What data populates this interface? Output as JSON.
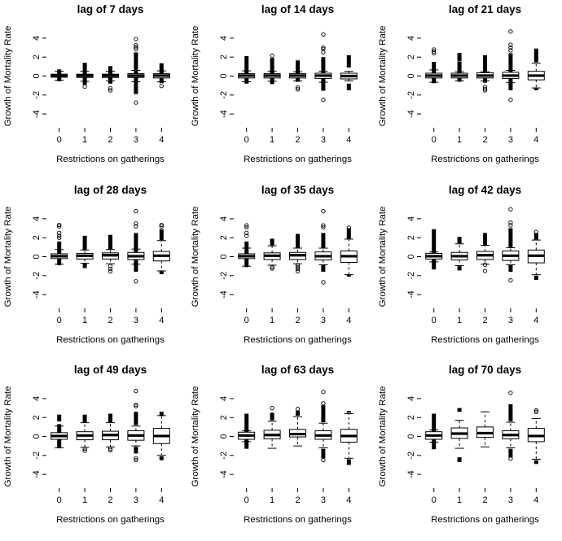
{
  "colors": {
    "background": "#ffffff",
    "ink": "#000000"
  },
  "chart_data": [
    {
      "type": "boxplot",
      "title": "lag of 7 days",
      "xlabel": "Restrictions on gatherings",
      "ylabel": "Growth of Mortality Rate",
      "categories": [
        "0",
        "1",
        "2",
        "3",
        "4"
      ],
      "yticks": [
        -4,
        -2,
        0,
        2,
        4
      ],
      "ylim": [
        -5.45,
        5.45
      ],
      "boxes": [
        {
          "median": 0.05,
          "q1": -0.12,
          "q3": 0.2,
          "whisker_low": -0.45,
          "whisker_high": 0.5,
          "outlier_stacks": [
            [
              -0.55,
              0.7
            ]
          ],
          "outliers": []
        },
        {
          "median": 0.05,
          "q1": -0.15,
          "q3": 0.2,
          "whisker_low": -0.55,
          "whisker_high": 0.5,
          "outlier_stacks": [
            [
              -0.9,
              1.4
            ]
          ],
          "outliers": [
            -1.1
          ]
        },
        {
          "median": 0.05,
          "q1": -0.15,
          "q3": 0.2,
          "whisker_low": -0.5,
          "whisker_high": 0.5,
          "outlier_stacks": [
            [
              -0.8,
              1.05
            ]
          ],
          "outliers": [
            -1.3,
            -1.5
          ]
        },
        {
          "median": 0.05,
          "q1": -0.15,
          "q3": 0.25,
          "whisker_low": -0.6,
          "whisker_high": 0.6,
          "outlier_stacks": [
            [
              -1.9,
              2.5
            ]
          ],
          "outliers": [
            2.85,
            3.05,
            3.25,
            3.9,
            -2.8
          ]
        },
        {
          "median": 0.05,
          "q1": -0.2,
          "q3": 0.25,
          "whisker_low": -0.6,
          "whisker_high": 0.55,
          "outlier_stacks": [
            [
              -0.75,
              1.35
            ]
          ],
          "outliers": [
            -1.05
          ]
        }
      ]
    },
    {
      "type": "boxplot",
      "title": "lag of 14 days",
      "xlabel": "Restrictions on gatherings",
      "ylabel": "Growth of Mortality Rate",
      "categories": [
        "0",
        "1",
        "2",
        "3",
        "4"
      ],
      "yticks": [
        -4,
        -2,
        0,
        2,
        4
      ],
      "ylim": [
        -5.45,
        5.45
      ],
      "boxes": [
        {
          "median": 0.05,
          "q1": -0.2,
          "q3": 0.25,
          "whisker_low": -0.6,
          "whisker_high": 0.55,
          "outlier_stacks": [
            [
              -0.8,
              2.1
            ]
          ],
          "outliers": []
        },
        {
          "median": 0.05,
          "q1": -0.2,
          "q3": 0.25,
          "whisker_low": -0.55,
          "whisker_high": 0.5,
          "outlier_stacks": [
            [
              -0.85,
              1.9
            ]
          ],
          "outliers": [
            2.15
          ]
        },
        {
          "median": 0.05,
          "q1": -0.2,
          "q3": 0.25,
          "whisker_low": -0.5,
          "whisker_high": 0.45,
          "outlier_stacks": [
            [
              -0.6,
              1.65
            ]
          ],
          "outliers": [
            -1.2,
            -1.4
          ]
        },
        {
          "median": 0.05,
          "q1": -0.25,
          "q3": 0.3,
          "whisker_low": -0.65,
          "whisker_high": 0.5,
          "outlier_stacks": [
            [
              -1.55,
              2.0
            ]
          ],
          "outliers": [
            2.5,
            2.85,
            3.0,
            4.4,
            -2.5
          ]
        },
        {
          "median": 0.0,
          "q1": -0.3,
          "q3": 0.3,
          "whisker_low": -0.5,
          "whisker_high": 0.5,
          "outlier_stacks": [
            [
              0.9,
              2.2
            ],
            [
              -0.8,
              -1.5
            ]
          ],
          "outliers": []
        }
      ]
    },
    {
      "type": "boxplot",
      "title": "lag of 21 days",
      "xlabel": "Restrictions on gatherings",
      "ylabel": "Growth of Mortality Rate",
      "categories": [
        "0",
        "1",
        "2",
        "3",
        "4"
      ],
      "yticks": [
        -4,
        -2,
        0,
        2,
        4
      ],
      "ylim": [
        -5.45,
        5.45
      ],
      "boxes": [
        {
          "median": 0.05,
          "q1": -0.2,
          "q3": 0.3,
          "whisker_low": -0.65,
          "whisker_high": 0.65,
          "outlier_stacks": [
            [
              -0.75,
              1.5
            ]
          ],
          "outliers": [
            2.4,
            2.6,
            2.8
          ]
        },
        {
          "median": 0.05,
          "q1": -0.2,
          "q3": 0.3,
          "whisker_low": -0.5,
          "whisker_high": 0.45,
          "outlier_stacks": [
            [
              -0.6,
              1.55
            ],
            [
              1.6,
              2.45
            ]
          ],
          "outliers": []
        },
        {
          "median": 0.05,
          "q1": -0.2,
          "q3": 0.35,
          "whisker_low": -0.5,
          "whisker_high": 0.45,
          "outlier_stacks": [
            [
              -0.7,
              2.2
            ]
          ],
          "outliers": [
            -1.15,
            -1.35,
            -1.5
          ]
        },
        {
          "median": 0.05,
          "q1": -0.25,
          "q3": 0.4,
          "whisker_low": -0.7,
          "whisker_high": 0.6,
          "outlier_stacks": [
            [
              -1.5,
              2.4
            ]
          ],
          "outliers": [
            2.7,
            3.0,
            3.3,
            4.7,
            -2.5
          ]
        },
        {
          "median": 0.05,
          "q1": -0.4,
          "q3": 0.5,
          "whisker_low": -1.25,
          "whisker_high": 1.35,
          "outlier_stacks": [
            [
              1.45,
              2.9
            ],
            [
              -1.3,
              -1.5
            ]
          ],
          "outliers": []
        }
      ]
    },
    {
      "type": "boxplot",
      "title": "lag of 28 days",
      "xlabel": "Restrictions on gatherings",
      "ylabel": "Growth of Mortality Rate",
      "categories": [
        "0",
        "1",
        "2",
        "3",
        "4"
      ],
      "yticks": [
        -4,
        -2,
        0,
        2,
        4
      ],
      "ylim": [
        -5.45,
        5.45
      ],
      "boxes": [
        {
          "median": 0.05,
          "q1": -0.2,
          "q3": 0.3,
          "whisker_low": -0.8,
          "whisker_high": 0.75,
          "outlier_stacks": [
            [
              -0.9,
              1.6
            ]
          ],
          "outliers": [
            2.0,
            2.2,
            2.5,
            3.2,
            3.35
          ]
        },
        {
          "median": 0.1,
          "q1": -0.25,
          "q3": 0.35,
          "whisker_low": -0.7,
          "whisker_high": 0.7,
          "outlier_stacks": [
            [
              0.7,
              2.2
            ],
            [
              -0.7,
              -1.2
            ]
          ],
          "outliers": []
        },
        {
          "median": 0.15,
          "q1": -0.25,
          "q3": 0.4,
          "whisker_low": -0.75,
          "whisker_high": 0.75,
          "outlier_stacks": [
            [
              0.75,
              2.3
            ]
          ],
          "outliers": [
            -1.0,
            -1.3,
            -1.55
          ]
        },
        {
          "median": 0.05,
          "q1": -0.3,
          "q3": 0.45,
          "whisker_low": -0.8,
          "whisker_high": 0.8,
          "outlier_stacks": [
            [
              -1.6,
              2.5
            ]
          ],
          "outliers": [
            3.2,
            3.5,
            4.8,
            -2.6
          ]
        },
        {
          "median": 0.1,
          "q1": -0.45,
          "q3": 0.55,
          "whisker_low": -1.5,
          "whisker_high": 1.7,
          "outlier_stacks": [
            [
              1.75,
              2.9
            ],
            [
              -1.55,
              -1.85
            ]
          ],
          "outliers": [
            3.2,
            3.35
          ]
        }
      ]
    },
    {
      "type": "boxplot",
      "title": "lag of 35 days",
      "xlabel": "Restrictions on gatherings",
      "ylabel": "Growth of Mortality Rate",
      "categories": [
        "0",
        "1",
        "2",
        "3",
        "4"
      ],
      "yticks": [
        -4,
        -2,
        0,
        2,
        4
      ],
      "ylim": [
        -5.45,
        5.45
      ],
      "boxes": [
        {
          "median": 0.05,
          "q1": -0.2,
          "q3": 0.3,
          "whisker_low": -1.0,
          "whisker_high": 0.9,
          "outlier_stacks": [
            [
              -1.1,
              1.6
            ]
          ],
          "outliers": [
            2.2,
            2.5,
            3.1,
            3.3
          ]
        },
        {
          "median": 0.1,
          "q1": -0.3,
          "q3": 0.4,
          "whisker_low": -0.9,
          "whisker_high": 1.15,
          "outlier_stacks": [
            [
              1.2,
              1.9
            ]
          ],
          "outliers": [
            -1.1,
            -1.25
          ]
        },
        {
          "median": 0.15,
          "q1": -0.3,
          "q3": 0.45,
          "whisker_low": -0.75,
          "whisker_high": 0.9,
          "outlier_stacks": [
            [
              0.95,
              2.4
            ]
          ],
          "outliers": [
            -0.9,
            -1.1,
            -1.3,
            -1.55
          ]
        },
        {
          "median": 0.05,
          "q1": -0.35,
          "q3": 0.5,
          "whisker_low": -0.85,
          "whisker_high": 0.9,
          "outlier_stacks": [
            [
              0.95,
              2.5
            ],
            [
              -0.9,
              -1.6
            ]
          ],
          "outliers": [
            3.1,
            3.3,
            4.8,
            -2.7
          ]
        },
        {
          "median": 0.05,
          "q1": -0.6,
          "q3": 0.6,
          "whisker_low": -1.9,
          "whisker_high": 1.85,
          "outlier_stacks": [
            [
              1.9,
              3.0
            ],
            [
              -1.9,
              -2.1
            ]
          ],
          "outliers": [
            3.05
          ]
        }
      ]
    },
    {
      "type": "boxplot",
      "title": "lag of 42 days",
      "xlabel": "Restrictions on gatherings",
      "ylabel": "Growth of Mortality Rate",
      "categories": [
        "0",
        "1",
        "2",
        "3",
        "4"
      ],
      "yticks": [
        -4,
        -2,
        0,
        2,
        4
      ],
      "ylim": [
        -5.45,
        5.45
      ],
      "boxes": [
        {
          "median": 0.05,
          "q1": -0.25,
          "q3": 0.35,
          "whisker_low": -0.55,
          "whisker_high": 0.5,
          "outlier_stacks": [
            [
              -1.35,
              2.9
            ]
          ],
          "outliers": []
        },
        {
          "median": 0.05,
          "q1": -0.35,
          "q3": 0.45,
          "whisker_low": -0.95,
          "whisker_high": 1.35,
          "outlier_stacks": [
            [
              1.4,
              2.1
            ],
            [
              -1.0,
              -1.45
            ]
          ],
          "outliers": []
        },
        {
          "median": 0.15,
          "q1": -0.3,
          "q3": 0.55,
          "whisker_low": -0.8,
          "whisker_high": 1.2,
          "outlier_stacks": [
            [
              1.25,
              2.5
            ]
          ],
          "outliers": [
            -0.85,
            -1.5
          ]
        },
        {
          "median": 0.1,
          "q1": -0.4,
          "q3": 0.6,
          "whisker_low": -0.85,
          "whisker_high": 0.95,
          "outlier_stacks": [
            [
              1.0,
              3.0
            ],
            [
              -0.9,
              -1.6
            ]
          ],
          "outliers": [
            3.3,
            3.6,
            5.0,
            -2.5
          ]
        },
        {
          "median": 0.1,
          "q1": -0.65,
          "q3": 0.7,
          "whisker_low": -1.9,
          "whisker_high": 1.75,
          "outlier_stacks": [
            [
              1.8,
              2.5
            ],
            [
              -2.0,
              -2.45
            ]
          ],
          "outliers": [
            2.6
          ]
        }
      ]
    },
    {
      "type": "boxplot",
      "title": "lag of 49 days",
      "xlabel": "Restrictions on gatherings",
      "ylabel": "Growth of Mortality Rate",
      "categories": [
        "0",
        "1",
        "2",
        "3",
        "4"
      ],
      "yticks": [
        -4,
        -2,
        0,
        2,
        4
      ],
      "ylim": [
        -5.45,
        5.45
      ],
      "boxes": [
        {
          "median": 0.05,
          "q1": -0.3,
          "q3": 0.4,
          "whisker_low": -1.2,
          "whisker_high": 1.1,
          "outlier_stacks": [
            [
              -1.25,
              1.3
            ],
            [
              1.6,
              2.3
            ]
          ],
          "outliers": []
        },
        {
          "median": 0.1,
          "q1": -0.35,
          "q3": 0.5,
          "whisker_low": -1.15,
          "whisker_high": 1.45,
          "outlier_stacks": [
            [
              1.5,
              2.3
            ]
          ],
          "outliers": [
            -1.3,
            -1.5
          ]
        },
        {
          "median": 0.15,
          "q1": -0.35,
          "q3": 0.55,
          "whisker_low": -1.1,
          "whisker_high": 1.45,
          "outlier_stacks": [
            [
              1.5,
              2.4
            ]
          ],
          "outliers": [
            -1.3,
            -1.45
          ]
        },
        {
          "median": 0.1,
          "q1": -0.4,
          "q3": 0.6,
          "whisker_low": -1.0,
          "whisker_high": 1.1,
          "outlier_stacks": [
            [
              1.2,
              2.6
            ],
            [
              -1.1,
              -1.8
            ]
          ],
          "outliers": [
            3.2,
            3.35,
            4.8,
            -2.3,
            -2.5
          ]
        },
        {
          "median": 0.05,
          "q1": -0.75,
          "q3": 0.85,
          "whisker_low": -2.0,
          "whisker_high": 2.2,
          "outlier_stacks": [
            [
              2.2,
              2.6
            ],
            [
              -2.1,
              -2.5
            ]
          ],
          "outliers": []
        }
      ]
    },
    {
      "type": "boxplot",
      "title": "lag of 63 days",
      "xlabel": "Restrictions on gatherings",
      "ylabel": "Growth of Mortality Rate",
      "categories": [
        "0",
        "1",
        "2",
        "3",
        "4"
      ],
      "yticks": [
        -4,
        -2,
        0,
        2,
        4
      ],
      "ylim": [
        -5.45,
        5.45
      ],
      "boxes": [
        {
          "median": 0.1,
          "q1": -0.3,
          "q3": 0.45,
          "whisker_low": -0.55,
          "whisker_high": 0.6,
          "outlier_stacks": [
            [
              -1.3,
              2.4
            ]
          ],
          "outliers": []
        },
        {
          "median": 0.15,
          "q1": -0.25,
          "q3": 0.65,
          "whisker_low": -1.25,
          "whisker_high": 1.6,
          "outlier_stacks": [
            [
              1.7,
              2.5
            ]
          ],
          "outliers": [
            3.0
          ]
        },
        {
          "median": 0.25,
          "q1": -0.05,
          "q3": 0.75,
          "whisker_low": -1.0,
          "whisker_high": 2.1,
          "outlier_stacks": [
            [
              2.2,
              2.7
            ]
          ],
          "outliers": [
            2.9
          ]
        },
        {
          "median": 0.1,
          "q1": -0.3,
          "q3": 0.6,
          "whisker_low": -1.2,
          "whisker_high": 1.4,
          "outlier_stacks": [
            [
              1.5,
              3.3
            ],
            [
              -1.3,
              -2.3
            ]
          ],
          "outliers": [
            3.5,
            4.7,
            -2.5
          ]
        },
        {
          "median": 0.05,
          "q1": -0.6,
          "q3": 0.75,
          "whisker_low": -2.3,
          "whisker_high": 2.4,
          "outlier_stacks": [
            [
              2.5,
              2.7
            ],
            [
              -2.4,
              -3.0
            ]
          ],
          "outliers": []
        }
      ]
    },
    {
      "type": "boxplot",
      "title": "lag of 70 days",
      "xlabel": "Restrictions on gatherings",
      "ylabel": "Growth of Mortality Rate",
      "categories": [
        "0",
        "1",
        "2",
        "3",
        "4"
      ],
      "yticks": [
        -4,
        -2,
        0,
        2,
        4
      ],
      "ylim": [
        -5.45,
        5.45
      ],
      "boxes": [
        {
          "median": 0.1,
          "q1": -0.3,
          "q3": 0.5,
          "whisker_low": -0.6,
          "whisker_high": 0.7,
          "outlier_stacks": [
            [
              -1.35,
              2.4
            ]
          ],
          "outliers": []
        },
        {
          "median": 0.3,
          "q1": -0.2,
          "q3": 0.9,
          "whisker_low": -1.25,
          "whisker_high": 1.7,
          "outlier_stacks": [
            [
              2.6,
              3.0
            ],
            [
              -2.2,
              -2.7
            ]
          ],
          "outliers": []
        },
        {
          "median": 0.35,
          "q1": -0.1,
          "q3": 1.0,
          "whisker_low": -1.1,
          "whisker_high": 2.6,
          "outlier_stacks": [],
          "outliers": []
        },
        {
          "median": 0.15,
          "q1": -0.25,
          "q3": 0.6,
          "whisker_low": -1.2,
          "whisker_high": 1.5,
          "outlier_stacks": [
            [
              1.6,
              3.4
            ],
            [
              -1.3,
              -2.2
            ]
          ],
          "outliers": [
            4.6,
            -2.35
          ]
        },
        {
          "median": 0.05,
          "q1": -0.55,
          "q3": 0.85,
          "whisker_low": -2.4,
          "whisker_high": 1.9,
          "outlier_stacks": [
            [
              -2.5,
              -2.9
            ]
          ],
          "outliers": [
            2.6,
            2.75
          ]
        }
      ]
    }
  ]
}
